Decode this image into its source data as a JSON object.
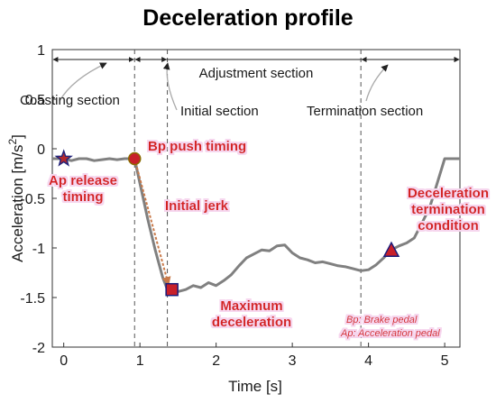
{
  "chart_data": {
    "type": "line",
    "title": "Deceleration profile",
    "xlabel": "Time [s]",
    "ylabel": "Acceleration [m/s",
    "ylabel_sup": "2",
    "ylabel_close": "]",
    "xlim": [
      -0.15,
      5.2
    ],
    "ylim": [
      -2,
      1
    ],
    "xticks": [
      0,
      1,
      2,
      3,
      4,
      5
    ],
    "yticks": [
      1,
      0.5,
      0,
      -0.5,
      -1,
      -1.5,
      -2
    ],
    "ytick_labels": [
      "1",
      "0.5",
      "0",
      "-0.5",
      "-1",
      "-1.5",
      "-2"
    ],
    "grid": false,
    "series": [
      {
        "color": "#808080",
        "x": [
          -0.15,
          0.0,
          0.1,
          0.2,
          0.3,
          0.4,
          0.5,
          0.6,
          0.7,
          0.8,
          0.93,
          1.0,
          1.1,
          1.2,
          1.3,
          1.36,
          1.42,
          1.5,
          1.6,
          1.7,
          1.8,
          1.9,
          2.0,
          2.1,
          2.2,
          2.3,
          2.4,
          2.5,
          2.6,
          2.7,
          2.8,
          2.9,
          3.0,
          3.1,
          3.2,
          3.3,
          3.4,
          3.5,
          3.6,
          3.7,
          3.8,
          3.9,
          4.0,
          4.1,
          4.2,
          4.3,
          4.4,
          4.5,
          4.6,
          4.7,
          4.8,
          4.9,
          5.0,
          5.2
        ],
        "y": [
          -0.1,
          -0.1,
          -0.12,
          -0.1,
          -0.1,
          -0.12,
          -0.11,
          -0.1,
          -0.11,
          -0.1,
          -0.1,
          -0.35,
          -0.7,
          -1.02,
          -1.3,
          -1.42,
          -1.42,
          -1.44,
          -1.42,
          -1.38,
          -1.4,
          -1.35,
          -1.38,
          -1.33,
          -1.27,
          -1.18,
          -1.1,
          -1.06,
          -1.02,
          -1.03,
          -0.98,
          -0.97,
          -1.05,
          -1.1,
          -1.12,
          -1.15,
          -1.14,
          -1.16,
          -1.18,
          -1.19,
          -1.21,
          -1.23,
          -1.22,
          -1.17,
          -1.1,
          -1.02,
          -0.98,
          -0.95,
          -0.9,
          -0.75,
          -0.6,
          -0.35,
          -0.1,
          -0.1
        ]
      }
    ],
    "markers": [
      {
        "shape": "star",
        "x": 0.0,
        "y": -0.1,
        "fill": "#b3282d",
        "stroke": "#24247a"
      },
      {
        "shape": "circle",
        "x": 0.93,
        "y": -0.1,
        "fill": "#c8202a",
        "stroke": "#8a6b00"
      },
      {
        "shape": "square",
        "x": 1.42,
        "y": -1.42,
        "fill": "#c8202a",
        "stroke": "#1a1a7a"
      },
      {
        "shape": "triangle",
        "x": 4.3,
        "y": -1.02,
        "fill": "#c8202a",
        "stroke": "#1a1a7a"
      }
    ],
    "jerk_arrow": {
      "x1": 0.93,
      "y1": -0.1,
      "x2": 1.42,
      "y2": -1.42,
      "color": "#c97a4a"
    },
    "dividers": [
      0.93,
      1.36,
      3.9
    ],
    "section_arrows": [
      {
        "label": "Coasting section",
        "x1": -0.15,
        "x2": 0.93
      },
      {
        "label": "Initial section",
        "x1": 0.93,
        "x2": 1.36
      },
      {
        "label": "Adjustment section",
        "x1": 0.93,
        "x2": 5.2
      },
      {
        "label": "Termination section",
        "x1": 3.9,
        "x2": 5.2
      }
    ],
    "annotations": [
      {
        "lines": [
          "Ap release",
          "timing"
        ]
      },
      {
        "lines": [
          "Bp push timing"
        ]
      },
      {
        "lines": [
          "Initial jerk"
        ]
      },
      {
        "lines": [
          "Maximum",
          "deceleration"
        ]
      },
      {
        "lines": [
          "Deceleration",
          "termination",
          "condition"
        ]
      }
    ],
    "footnotes": [
      "Bp: Brake pedal",
      "Ap: Acceleration pedal"
    ]
  }
}
